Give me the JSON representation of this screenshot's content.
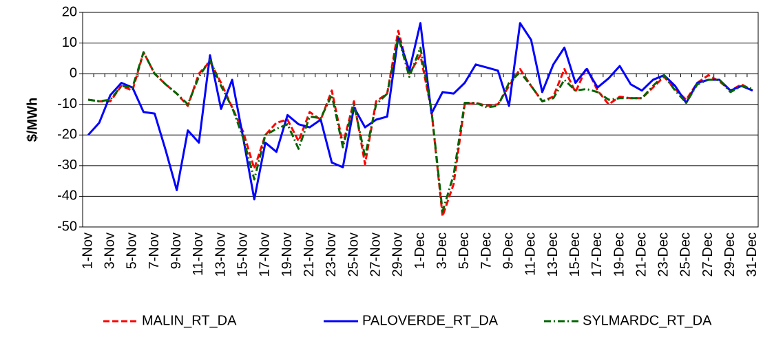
{
  "chart_data": {
    "type": "line",
    "ylabel": "$/MWh",
    "categories": [
      "1-Nov",
      null,
      "3-Nov",
      null,
      "5-Nov",
      null,
      "7-Nov",
      null,
      "9-Nov",
      null,
      "11-Nov",
      null,
      "13-Nov",
      null,
      "15-Nov",
      null,
      "17-Nov",
      null,
      "19-Nov",
      null,
      "21-Nov",
      null,
      "23-Nov",
      null,
      "25-Nov",
      null,
      "27-Nov",
      null,
      "29-Nov",
      null,
      "1-Dec",
      null,
      "3-Dec",
      null,
      "5-Dec",
      null,
      "7-Dec",
      null,
      "9-Dec",
      null,
      "11-Dec",
      null,
      "13-Dec",
      null,
      "15-Dec",
      null,
      "17-Dec",
      null,
      "19-Dec",
      null,
      "21-Dec",
      null,
      "23-Dec",
      null,
      "25-Dec",
      null,
      "27-Dec",
      null,
      "29-Dec",
      null,
      "31-Dec"
    ],
    "series": [
      {
        "name": "MALIN_RT_DA",
        "color": "#ff0000",
        "dash": "dashed",
        "values": [
          -8.5,
          -9,
          -9,
          -4,
          -5.5,
          7,
          0,
          -3.5,
          -6.5,
          -10.5,
          0,
          4,
          -3,
          -11,
          -19,
          -31,
          -20,
          -16,
          -15,
          -22,
          -12.5,
          -15,
          -5.5,
          -23,
          -9,
          -29.5,
          -9,
          -6.5,
          14,
          0,
          6,
          -12,
          -46.5,
          -36,
          -10,
          -9.5,
          -10.5,
          -10,
          -4,
          1.5,
          -4,
          -9,
          -7.5,
          1.5,
          -6,
          2,
          -5.5,
          -10,
          -7.5,
          -8,
          -8,
          -4.5,
          -1,
          -5,
          -8.5,
          -3,
          -0.5,
          -2.5,
          -5.5,
          -3.5,
          -5.5
        ]
      },
      {
        "name": "PALOVERDE_RT_DA",
        "color": "#0000ff",
        "dash": "solid",
        "values": [
          -20,
          -16,
          -7,
          -3,
          -4.5,
          -12.5,
          -13,
          -25,
          -38,
          -18.5,
          -22.5,
          6,
          -11.5,
          -2,
          -21,
          -41,
          -22.5,
          -25.5,
          -13.5,
          -16.5,
          -17.5,
          -15,
          -29,
          -30.5,
          -11,
          -17.5,
          -15,
          -14,
          12,
          1,
          16.5,
          -13,
          -6,
          -6.5,
          -3,
          3,
          2,
          1,
          -10.5,
          16.5,
          11,
          -6,
          3,
          8.5,
          -3,
          1.5,
          -4.5,
          -1.5,
          2.5,
          -3.5,
          -5.5,
          -2,
          -0.5,
          -4,
          -9.5,
          -3,
          -2,
          -2,
          -5.5,
          -4,
          -5.5
        ]
      },
      {
        "name": "SYLMARDC_RT_DA",
        "color": "#006400",
        "dash": "dashdot",
        "values": [
          -8.5,
          -9,
          -8.5,
          -4,
          -4.5,
          7,
          0,
          -3.5,
          -6.5,
          -10,
          -1,
          4.5,
          -4,
          -11,
          -21,
          -34.5,
          -20,
          -18,
          -16.5,
          -24.5,
          -14,
          -14.5,
          -7,
          -24,
          -10,
          -27,
          -10,
          -6.5,
          12,
          -1,
          8.5,
          -12,
          -45,
          -33,
          -9.5,
          -9.5,
          -11,
          -10.5,
          -3,
          0.5,
          -4,
          -9,
          -8,
          -2,
          -5.5,
          -5,
          -6,
          -8.5,
          -8,
          -8,
          -8,
          -4,
          -0.5,
          -5.5,
          -9.5,
          -3.5,
          -2,
          -2,
          -6,
          -4,
          -5
        ]
      }
    ],
    "ylim": [
      -50,
      20
    ],
    "yticks": [
      -50,
      -40,
      -30,
      -20,
      -10,
      0,
      10,
      20
    ],
    "grid": true,
    "legend": "bottom"
  }
}
